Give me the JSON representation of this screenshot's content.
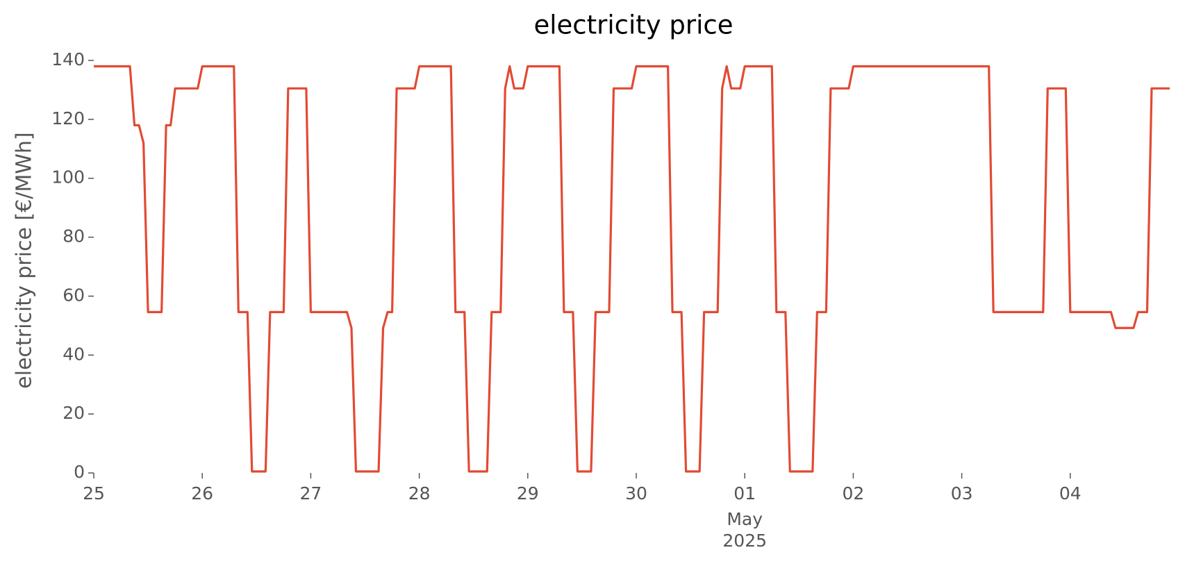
{
  "chart_data": {
    "type": "line",
    "title": "electricity price",
    "y_label": "electricity price [€/MWh]",
    "x": [
      "2025-04-25T00:00",
      "2025-04-25T08:00",
      "2025-04-25T09:00",
      "2025-04-25T10:00",
      "2025-04-25T11:00",
      "2025-04-25T12:00",
      "2025-04-25T15:00",
      "2025-04-25T16:00",
      "2025-04-25T17:00",
      "2025-04-25T18:00",
      "2025-04-25T23:00",
      "2025-04-26T00:00",
      "2025-04-26T07:00",
      "2025-04-26T08:00",
      "2025-04-26T10:00",
      "2025-04-26T11:00",
      "2025-04-26T14:00",
      "2025-04-26T15:00",
      "2025-04-26T18:00",
      "2025-04-26T19:00",
      "2025-04-26T23:00",
      "2025-04-27T00:00",
      "2025-04-27T08:00",
      "2025-04-27T09:00",
      "2025-04-27T10:00",
      "2025-04-27T15:00",
      "2025-04-27T16:00",
      "2025-04-27T17:00",
      "2025-04-27T18:00",
      "2025-04-27T19:00",
      "2025-04-27T23:00",
      "2025-04-28T00:00",
      "2025-04-28T07:00",
      "2025-04-28T08:00",
      "2025-04-28T10:00",
      "2025-04-28T11:00",
      "2025-04-28T15:00",
      "2025-04-28T16:00",
      "2025-04-28T18:00",
      "2025-04-28T19:00",
      "2025-04-28T20:00",
      "2025-04-28T21:00",
      "2025-04-28T23:00",
      "2025-04-29T00:00",
      "2025-04-29T07:00",
      "2025-04-29T08:00",
      "2025-04-29T10:00",
      "2025-04-29T11:00",
      "2025-04-29T14:00",
      "2025-04-29T15:00",
      "2025-04-29T18:00",
      "2025-04-29T19:00",
      "2025-04-29T23:00",
      "2025-04-30T00:00",
      "2025-04-30T07:00",
      "2025-04-30T08:00",
      "2025-04-30T10:00",
      "2025-04-30T11:00",
      "2025-04-30T14:00",
      "2025-04-30T15:00",
      "2025-04-30T18:00",
      "2025-04-30T19:00",
      "2025-04-30T20:00",
      "2025-04-30T21:00",
      "2025-04-30T23:00",
      "2025-05-01T00:00",
      "2025-05-01T06:00",
      "2025-05-01T07:00",
      "2025-05-01T09:00",
      "2025-05-01T10:00",
      "2025-05-01T15:00",
      "2025-05-01T16:00",
      "2025-05-01T18:00",
      "2025-05-01T19:00",
      "2025-05-01T23:00",
      "2025-05-02T00:00",
      "2025-05-03T06:00",
      "2025-05-03T07:00",
      "2025-05-03T18:00",
      "2025-05-03T19:00",
      "2025-05-03T23:00",
      "2025-05-04T00:00",
      "2025-05-04T09:00",
      "2025-05-04T10:00",
      "2025-05-04T14:00",
      "2025-05-04T15:00",
      "2025-05-04T17:00",
      "2025-05-04T18:00",
      "2025-05-04T22:00"
    ],
    "series": [
      {
        "color": "#E24A33",
        "values": [
          138,
          138,
          118,
          118,
          112,
          54.6,
          54.6,
          118,
          118,
          130.5,
          130.5,
          138,
          138,
          54.6,
          54.6,
          0.5,
          0.5,
          54.6,
          54.6,
          130.5,
          130.5,
          54.6,
          54.6,
          49.2,
          0.5,
          0.5,
          49.2,
          54.6,
          54.6,
          130.5,
          130.5,
          138,
          138,
          54.6,
          54.6,
          0.5,
          0.5,
          54.6,
          54.6,
          130.5,
          138,
          130.5,
          130.5,
          138,
          138,
          54.6,
          54.6,
          0.5,
          0.5,
          54.6,
          54.6,
          130.5,
          130.5,
          138,
          138,
          54.6,
          54.6,
          0.5,
          0.5,
          54.6,
          54.6,
          130.5,
          138,
          130.5,
          130.5,
          138,
          138,
          54.6,
          54.6,
          0.5,
          0.5,
          54.6,
          54.6,
          130.5,
          130.5,
          138,
          138,
          54.6,
          54.6,
          130.5,
          130.5,
          54.6,
          54.6,
          49.2,
          49.2,
          54.6,
          54.6,
          130.5,
          130.5
        ]
      }
    ],
    "xlim": [
      "2025-04-25T00:00",
      "2025-05-04T22:00"
    ],
    "xticks": [
      {
        "value": "2025-04-25T00:00",
        "label": "25"
      },
      {
        "value": "2025-04-26T00:00",
        "label": "26"
      },
      {
        "value": "2025-04-27T00:00",
        "label": "27"
      },
      {
        "value": "2025-04-28T00:00",
        "label": "28"
      },
      {
        "value": "2025-04-29T00:00",
        "label": "29"
      },
      {
        "value": "2025-04-30T00:00",
        "label": "30"
      },
      {
        "value": "2025-05-01T00:00",
        "label": "01",
        "month": "May",
        "year": "2025"
      },
      {
        "value": "2025-05-02T00:00",
        "label": "02"
      },
      {
        "value": "2025-05-03T00:00",
        "label": "03"
      },
      {
        "value": "2025-05-04T00:00",
        "label": "04"
      }
    ],
    "ylim": [
      0,
      140
    ],
    "yticks": [
      0,
      20,
      40,
      60,
      80,
      100,
      120,
      140
    ],
    "grid": false
  }
}
